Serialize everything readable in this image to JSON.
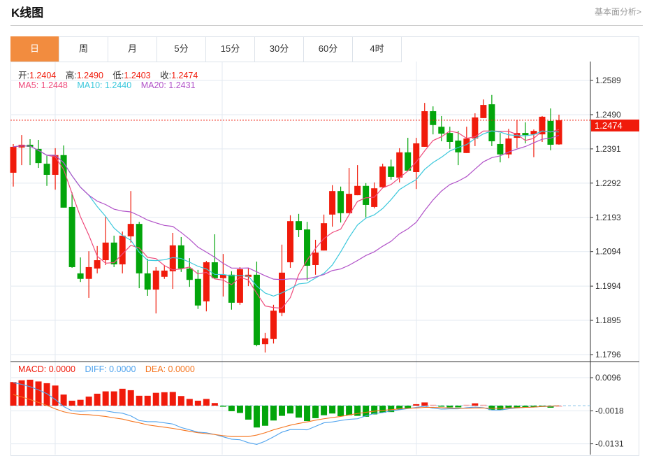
{
  "header": {
    "title": "K线图",
    "link": "基本面分析>"
  },
  "tabs": [
    {
      "label": "日",
      "active": true
    },
    {
      "label": "周"
    },
    {
      "label": "月"
    },
    {
      "label": "5分"
    },
    {
      "label": "15分"
    },
    {
      "label": "30分"
    },
    {
      "label": "60分"
    },
    {
      "label": "4时"
    }
  ],
  "info": {
    "open_label": "开:",
    "open": "1.2404",
    "high_label": "高:",
    "high": "1.2490",
    "low_label": "低:",
    "low": "1.2403",
    "close_label": "收:",
    "close": "1.2474",
    "ma5": "MA5: 1.2448",
    "ma10": "MA10: 1.2440",
    "ma20": "MA20: 1.2431",
    "macd": "MACD: 0.0000",
    "diff": "DIFF: 0.0000",
    "dea": "DEA: 0.0000"
  },
  "colors": {
    "up": "#f01b0b",
    "down": "#03a50b",
    "ma5": "#ef4b7c",
    "ma10": "#3cc8dc",
    "ma20": "#b152c8",
    "diff": "#4fa3ee",
    "dea": "#f5751f",
    "accent": "#f28c3f"
  },
  "chart_data": {
    "type": "candlestick",
    "last_price": "1.2474",
    "price_ticks": [
      "1.2589",
      "1.2490",
      "1.2391",
      "1.2292",
      "1.2193",
      "1.2094",
      "1.1994",
      "1.1895",
      "1.1796"
    ],
    "price_range": [
      1.1796,
      1.2589
    ],
    "macd_ticks": [
      "0.0096",
      "-0.0018",
      "-0.0131"
    ],
    "candles": [
      [
        1.2322,
        1.2405,
        1.2282,
        1.2397
      ],
      [
        1.2395,
        1.2431,
        1.2344,
        1.2403
      ],
      [
        1.2403,
        1.2419,
        1.2344,
        1.2397
      ],
      [
        1.2391,
        1.2417,
        1.2336,
        1.235
      ],
      [
        1.2348,
        1.2371,
        1.2284,
        1.2316
      ],
      [
        1.2316,
        1.2393,
        1.2273,
        1.2373
      ],
      [
        1.2373,
        1.2401,
        1.2221,
        1.2221
      ],
      [
        1.2223,
        1.2265,
        1.2047,
        1.2049
      ],
      [
        1.2031,
        1.2077,
        1.2006,
        1.2015
      ],
      [
        1.2015,
        1.2095,
        1.196,
        1.2049
      ],
      [
        1.2045,
        1.211,
        1.2031,
        1.2069
      ],
      [
        1.2069,
        1.2195,
        1.2055,
        1.212
      ],
      [
        1.212,
        1.214,
        1.2049,
        1.2057
      ],
      [
        1.2057,
        1.2152,
        1.2031,
        1.214
      ],
      [
        1.2138,
        1.2269,
        1.212,
        1.2174
      ],
      [
        1.2174,
        1.218,
        1.1988,
        1.2031
      ],
      [
        1.2031,
        1.2073,
        1.1966,
        1.1984
      ],
      [
        1.1984,
        1.2049,
        1.1915,
        1.2039
      ],
      [
        1.2021,
        1.2055,
        1.2015,
        1.2039
      ],
      [
        1.2037,
        1.2148,
        1.1986,
        1.2112
      ],
      [
        1.2112,
        1.2136,
        1.2035,
        1.2045
      ],
      [
        1.2045,
        1.2075,
        1.1992,
        1.2012
      ],
      [
        1.2015,
        1.2041,
        1.1928,
        1.1938
      ],
      [
        1.195,
        1.2067,
        1.1921,
        1.2063
      ],
      [
        1.2063,
        1.2144,
        1.2017,
        1.2017
      ],
      [
        1.2017,
        1.2087,
        1.1964,
        1.2027
      ],
      [
        1.2027,
        1.2037,
        1.1926,
        1.1946
      ],
      [
        1.1946,
        1.2049,
        1.194,
        1.2043
      ],
      [
        1.2021,
        1.2047,
        1.1994,
        1.2027
      ],
      [
        1.2027,
        1.2065,
        1.182,
        1.1824
      ],
      [
        1.1826,
        1.1859,
        1.1802,
        1.1843
      ],
      [
        1.1841,
        1.194,
        1.1828,
        1.1923
      ],
      [
        1.1917,
        1.2114,
        1.1907,
        1.2033
      ],
      [
        1.2063,
        1.2199,
        1.2047,
        1.2182
      ],
      [
        1.2182,
        1.2203,
        1.2136,
        1.2156
      ],
      [
        1.2158,
        1.218,
        1.201,
        1.2053
      ],
      [
        1.2055,
        1.2128,
        1.2027,
        1.2091
      ],
      [
        1.2097,
        1.2201,
        1.2097,
        1.2176
      ],
      [
        1.2201,
        1.2286,
        1.2166,
        1.2269
      ],
      [
        1.2269,
        1.2282,
        1.2178,
        1.2205
      ],
      [
        1.2205,
        1.2336,
        1.2205,
        1.2261
      ],
      [
        1.2257,
        1.2344,
        1.2257,
        1.2284
      ],
      [
        1.2284,
        1.2292,
        1.2193,
        1.2229
      ],
      [
        1.2223,
        1.2294,
        1.2219,
        1.2277
      ],
      [
        1.228,
        1.2348,
        1.228,
        1.234
      ],
      [
        1.234,
        1.236,
        1.2302,
        1.231
      ],
      [
        1.2308,
        1.2393,
        1.2294,
        1.2381
      ],
      [
        1.2381,
        1.2423,
        1.2328,
        1.2328
      ],
      [
        1.2324,
        1.2423,
        1.2275,
        1.2407
      ],
      [
        1.2397,
        1.2524,
        1.2397,
        1.25
      ],
      [
        1.25,
        1.2514,
        1.2433,
        1.246
      ],
      [
        1.2455,
        1.2486,
        1.2413,
        1.2435
      ],
      [
        1.2437,
        1.2455,
        1.2391,
        1.2411
      ],
      [
        1.2415,
        1.2443,
        1.2344,
        1.2381
      ],
      [
        1.2379,
        1.2455,
        1.2379,
        1.2421
      ],
      [
        1.2421,
        1.2494,
        1.2399,
        1.2482
      ],
      [
        1.248,
        1.2534,
        1.248,
        1.2518
      ],
      [
        1.252,
        1.2547,
        1.2399,
        1.2413
      ],
      [
        1.2405,
        1.2437,
        1.2352,
        1.2375
      ],
      [
        1.2375,
        1.2449,
        1.2364,
        1.2421
      ],
      [
        1.2423,
        1.2474,
        1.2393,
        1.2437
      ],
      [
        1.2437,
        1.2468,
        1.2407,
        1.2431
      ],
      [
        1.2433,
        1.2447,
        1.2367,
        1.2443
      ],
      [
        1.2433,
        1.2486,
        1.2411,
        1.2484
      ],
      [
        1.2472,
        1.2508,
        1.2387,
        1.2403
      ],
      [
        1.2404,
        1.249,
        1.2403,
        1.2474
      ]
    ],
    "macd_hist": [
      0.0081,
      0.0087,
      0.0089,
      0.0083,
      0.0077,
      0.0069,
      0.0038,
      0.0017,
      0.002,
      0.0031,
      0.0041,
      0.0049,
      0.0049,
      0.0058,
      0.0053,
      0.0034,
      0.0034,
      0.0044,
      0.0046,
      0.0047,
      0.0033,
      0.0023,
      0.0017,
      0.0023,
      0.0009,
      -0.0002,
      -0.0019,
      -0.0025,
      -0.0048,
      -0.0075,
      -0.0069,
      -0.0051,
      -0.0035,
      -0.0027,
      -0.0041,
      -0.0053,
      -0.0043,
      -0.0033,
      -0.0027,
      -0.0036,
      -0.0033,
      -0.0035,
      -0.0038,
      -0.003,
      -0.0024,
      -0.0022,
      -0.0013,
      -0.001,
      0.0005,
      0.0011,
      0.0003,
      -0.0003,
      -0.0006,
      -0.0006,
      0.0003,
      0.0008,
      0.0003,
      -0.0015,
      -0.0015,
      -0.0008,
      -0.0008,
      -0.0007,
      -0.0006,
      -0.0003,
      -0.0007,
      0.0
    ],
    "diff": [
      0.0079,
      0.0073,
      0.0065,
      0.0054,
      0.0041,
      0.0021,
      -0.0003,
      -0.0018,
      -0.0019,
      -0.0018,
      -0.0017,
      -0.0018,
      -0.0023,
      -0.0026,
      -0.0035,
      -0.0051,
      -0.0055,
      -0.0055,
      -0.0059,
      -0.0063,
      -0.0075,
      -0.0083,
      -0.0091,
      -0.0093,
      -0.0099,
      -0.0107,
      -0.0115,
      -0.0117,
      -0.0127,
      -0.0133,
      -0.0122,
      -0.0107,
      -0.0091,
      -0.0082,
      -0.0082,
      -0.0083,
      -0.0071,
      -0.0059,
      -0.0056,
      -0.0051,
      -0.0047,
      -0.0045,
      -0.0035,
      -0.0027,
      -0.0024,
      -0.0018,
      -0.0014,
      -0.001,
      -0.0006,
      -0.0002,
      -0.0009,
      -0.0012,
      -0.0011,
      -0.0011,
      -0.0007,
      -0.0005,
      -0.0007,
      -0.0015,
      -0.0015,
      -0.0011,
      -0.0008,
      -0.0006,
      -0.0005,
      -0.0003,
      -0.0003,
      0.0
    ],
    "dea": [
      0.0038,
      0.003,
      0.0021,
      0.0011,
      0.0001,
      -0.0011,
      -0.0021,
      -0.0027,
      -0.003,
      -0.0031,
      -0.0034,
      -0.0037,
      -0.0042,
      -0.0046,
      -0.0053,
      -0.0059,
      -0.0066,
      -0.007,
      -0.0074,
      -0.0078,
      -0.0083,
      -0.0088,
      -0.0093,
      -0.0096,
      -0.0099,
      -0.0103,
      -0.0106,
      -0.0106,
      -0.0106,
      -0.0101,
      -0.0093,
      -0.0083,
      -0.0075,
      -0.0067,
      -0.0061,
      -0.0056,
      -0.005,
      -0.0045,
      -0.0041,
      -0.0037,
      -0.0032,
      -0.0027,
      -0.0023,
      -0.0019,
      -0.0016,
      -0.0014,
      -0.0011,
      -0.0009,
      -0.0008,
      -0.0006,
      -0.0006,
      -0.0007,
      -0.0008,
      -0.0009,
      -0.0009,
      -0.0008,
      -0.0008,
      -0.0009,
      -0.0009,
      -0.0008,
      -0.0007,
      -0.0006,
      -0.0005,
      -0.0003,
      -0.0002,
      0.0
    ]
  }
}
